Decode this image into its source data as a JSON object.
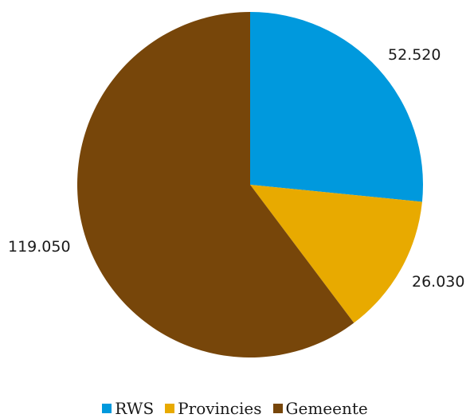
{
  "chart_data": {
    "type": "pie",
    "title": "",
    "categories": [
      "RWS",
      "Provincies",
      "Gemeente"
    ],
    "values": [
      52520,
      26030,
      119050
    ],
    "value_labels": [
      "52.520",
      "26.030",
      "119.050"
    ],
    "colors": [
      "#0099dd",
      "#e8aa00",
      "#77460a"
    ],
    "start_angle": "12 o'clock",
    "direction": "clockwise",
    "legend_position": "bottom"
  },
  "legend": {
    "items": [
      {
        "label": "RWS",
        "color": "#0099dd"
      },
      {
        "label": "Provincies",
        "color": "#e8aa00"
      },
      {
        "label": "Gemeente",
        "color": "#77460a"
      }
    ]
  }
}
